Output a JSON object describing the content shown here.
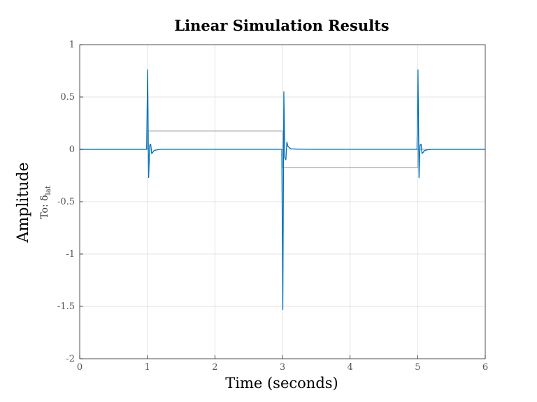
{
  "chart_data": {
    "type": "line",
    "title": "Linear Simulation Results",
    "xlabel": "Time (seconds)",
    "ylabel": "Amplitude",
    "output_label": "To: δ",
    "output_label_sub": "lat",
    "xlim": [
      0,
      6
    ],
    "ylim": [
      -2,
      1
    ],
    "xticks": [
      0,
      1,
      2,
      3,
      4,
      5,
      6
    ],
    "yticks": [
      -2,
      -1.5,
      -1,
      -0.5,
      0,
      0.5,
      1
    ],
    "xtick_labels": [
      "0",
      "1",
      "2",
      "3",
      "4",
      "5",
      "6"
    ],
    "ytick_labels": [
      "-2",
      "-1.5",
      "-1",
      "-0.5",
      "0",
      "0.5",
      "1"
    ],
    "grid": true,
    "series": [
      {
        "role": "input",
        "color": "#a8a8a8",
        "x": [
          0,
          1,
          1,
          3,
          3,
          5,
          5,
          6
        ],
        "y": [
          0,
          0,
          0.175,
          0.175,
          -0.175,
          -0.175,
          0,
          0
        ]
      },
      {
        "role": "response",
        "color": "#0072bd",
        "x": [
          0,
          0.99,
          1.005,
          1.02,
          1.035,
          1.05,
          1.065,
          1.08,
          1.095,
          1.11,
          1.14,
          1.2,
          2.99,
          3.005,
          3.02,
          3.035,
          3.05,
          3.065,
          3.08,
          3.095,
          3.11,
          3.13,
          3.2,
          3.4,
          4.99,
          5.005,
          5.02,
          5.035,
          5.05,
          5.065,
          5.08,
          5.095,
          5.11,
          5.14,
          5.2,
          6
        ],
        "y": [
          0,
          0,
          0.76,
          -0.27,
          0.04,
          0.05,
          -0.04,
          -0.03,
          -0.015,
          -0.01,
          -0.005,
          0,
          0,
          -1.53,
          0.55,
          -0.08,
          -0.1,
          0.07,
          0.03,
          0.02,
          0.01,
          0.005,
          0.003,
          0,
          0,
          0.76,
          -0.27,
          0.04,
          0.05,
          -0.04,
          -0.03,
          -0.015,
          -0.01,
          -0.005,
          0,
          0
        ]
      }
    ]
  }
}
